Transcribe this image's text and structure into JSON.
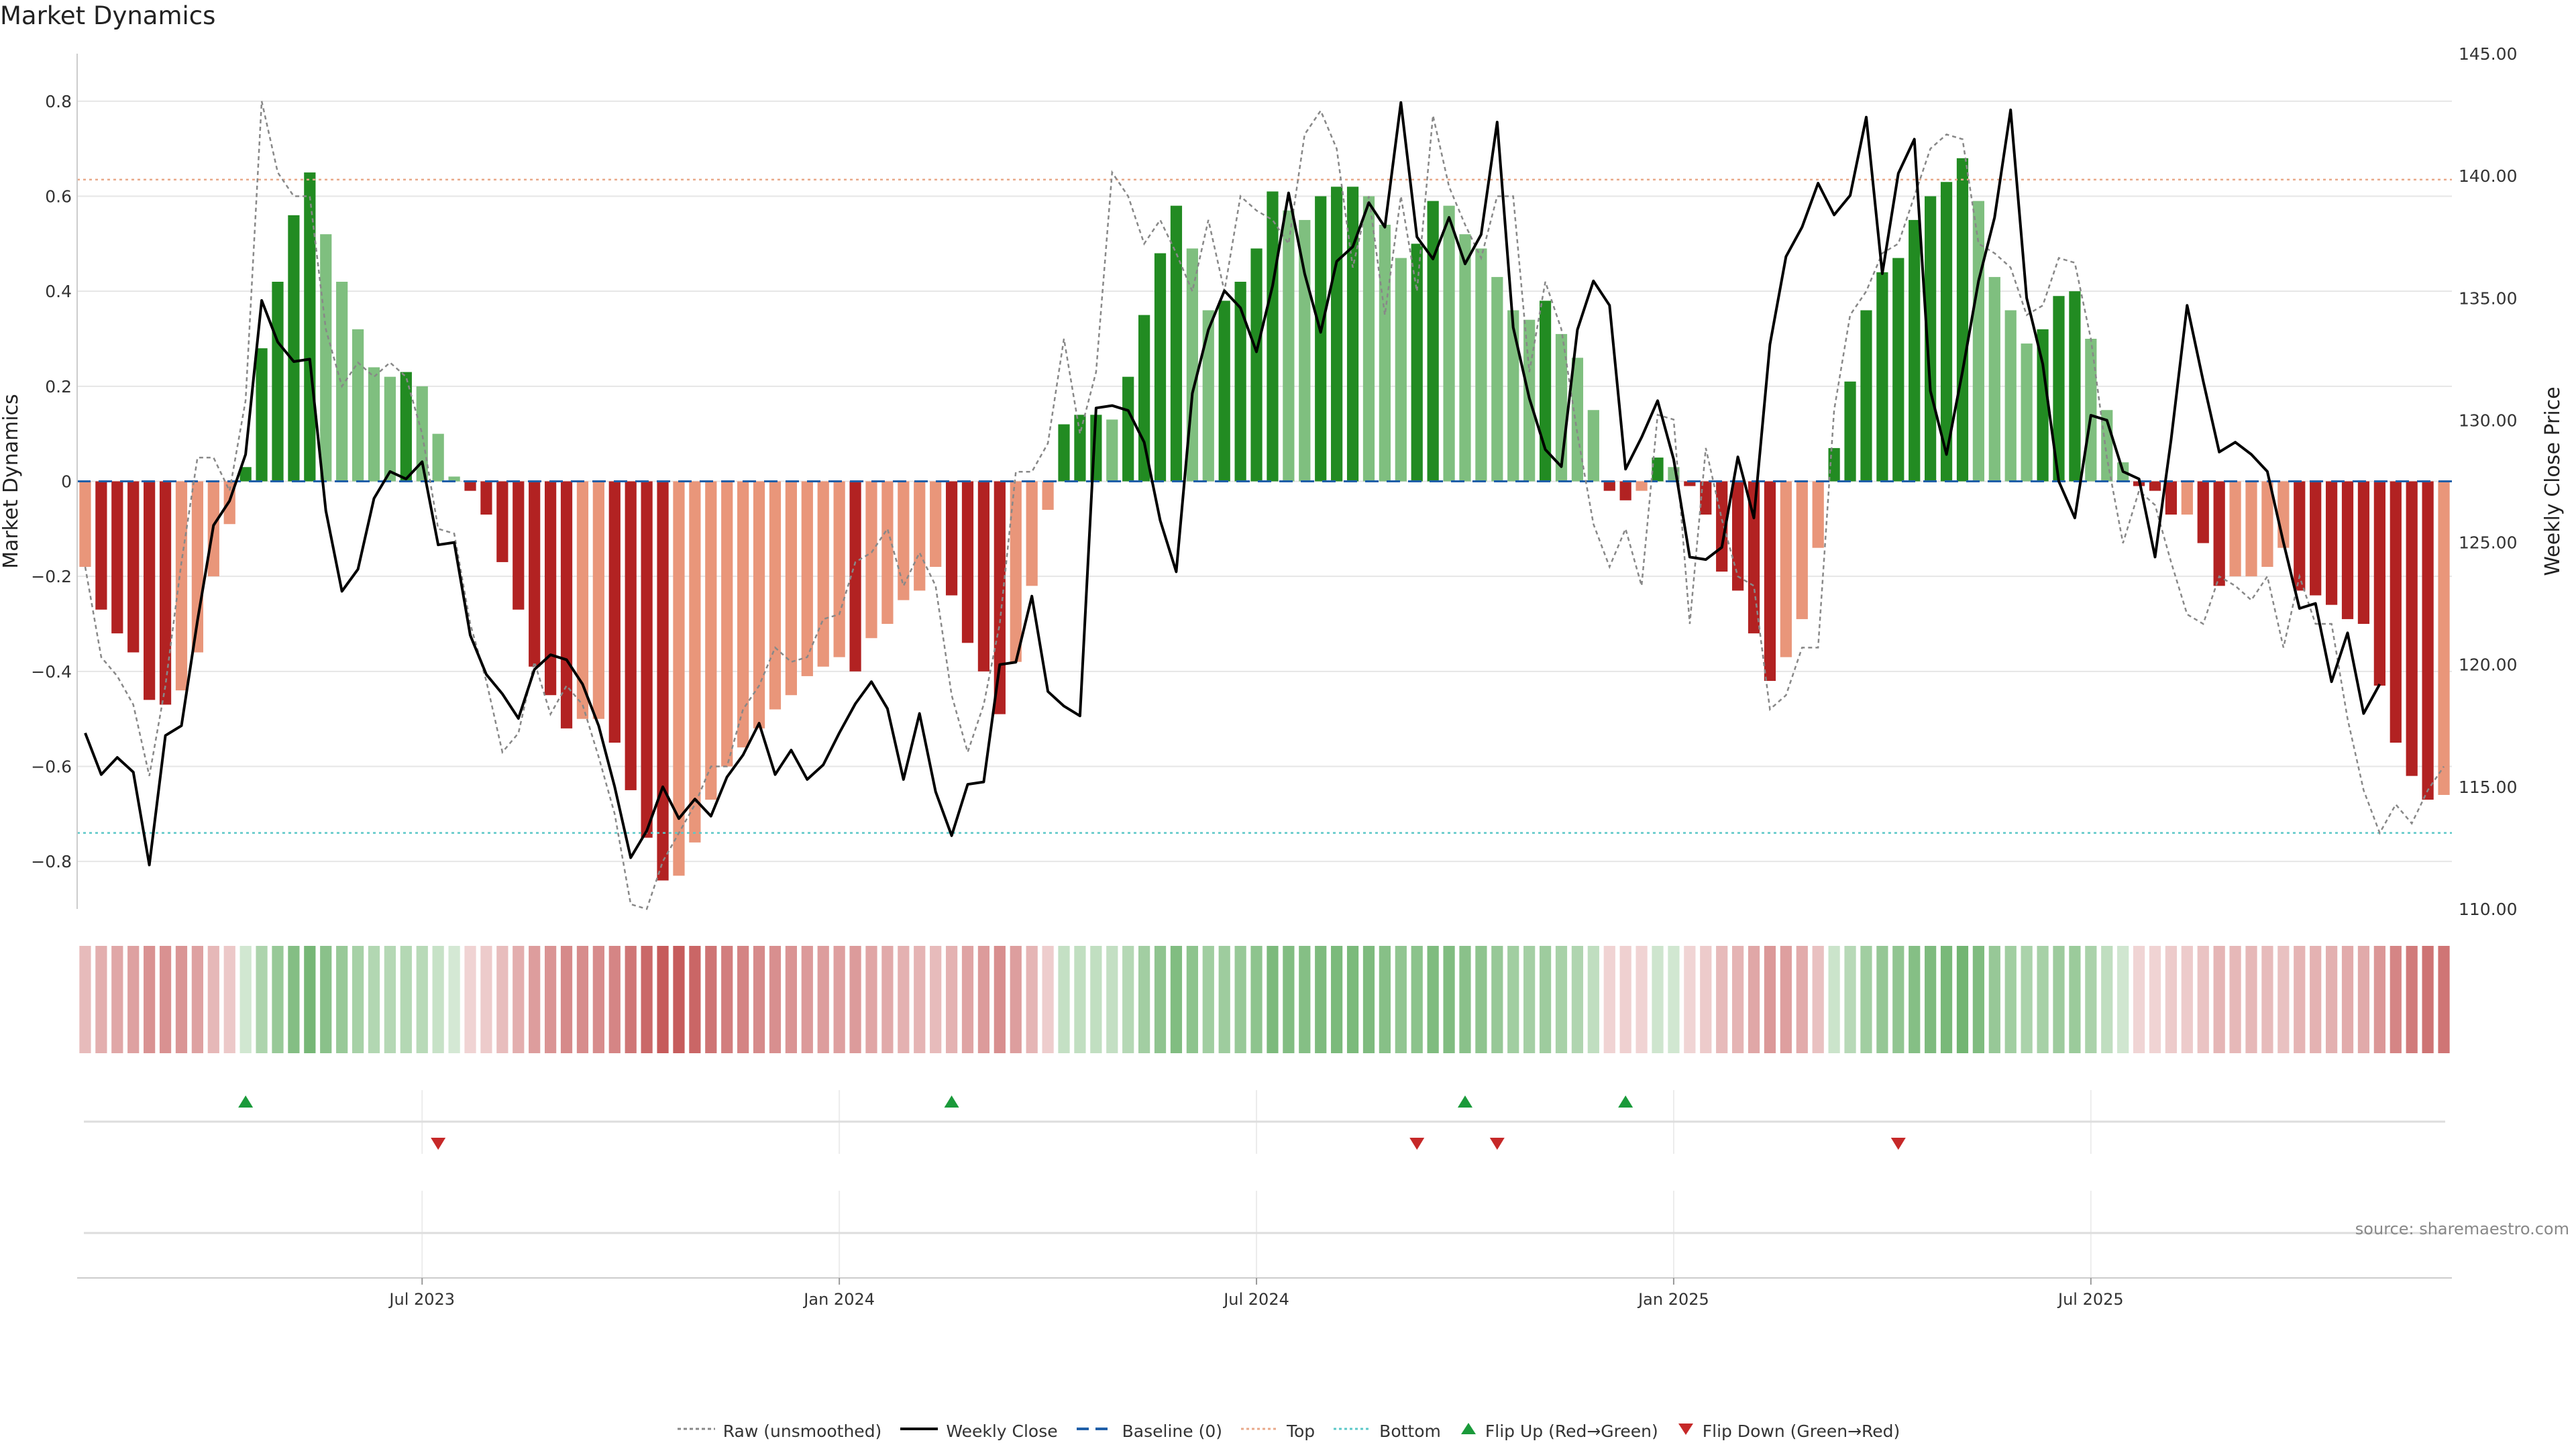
{
  "title": "Market Dynamics",
  "source": "source: sharemaestro.com",
  "colors": {
    "green_strong": "#228b22",
    "green_light": "#7fbf7f",
    "red_strong": "#b22222",
    "red_light": "#e9967a",
    "price_line": "#000000",
    "raw_line": "#888888",
    "baseline": "#1f5fa8",
    "top_line": "#e9a98a",
    "bottom_line": "#5bc8c8",
    "flip_up": "#1a9a3a",
    "flip_down": "#c62828"
  },
  "legend": [
    {
      "id": "raw",
      "label": "Raw (unsmoothed)"
    },
    {
      "id": "close",
      "label": "Weekly Close"
    },
    {
      "id": "baseline",
      "label": "Baseline (0)"
    },
    {
      "id": "top",
      "label": "Top"
    },
    {
      "id": "bottom",
      "label": "Bottom"
    },
    {
      "id": "flip-up",
      "label": "Flip Up (Red→Green)"
    },
    {
      "id": "flip-down",
      "label": "Flip Down (Green→Red)"
    }
  ],
  "chart_data": {
    "type": "bar",
    "title": "Market Dynamics",
    "ylabel": "Market Dynamics",
    "ylabel_right": "Weekly Close Price",
    "ylim": [
      -0.9,
      0.9
    ],
    "ylim_right": [
      110,
      145
    ],
    "y_ticks": [
      "0.8",
      "0.6",
      "0.4",
      "0.2",
      "0",
      "−0.2",
      "−0.4",
      "−0.6",
      "−0.8"
    ],
    "y_ticks_right": [
      "145.00",
      "140.00",
      "135.00",
      "130.00",
      "125.00",
      "120.00",
      "115.00",
      "110.00"
    ],
    "x_ticks": [
      {
        "label": "Jul 2023",
        "week": 21
      },
      {
        "label": "Jan 2024",
        "week": 47
      },
      {
        "label": "Jul 2024",
        "week": 73
      },
      {
        "label": "Jan 2025",
        "week": 99
      },
      {
        "label": "Jul 2025",
        "week": 125
      }
    ],
    "top": 0.635,
    "bottom": -0.74,
    "baseline": 0,
    "grid": true,
    "legend_position": "bottom-center",
    "series": [
      {
        "name": "Market Dynamics",
        "values": [
          -0.18,
          -0.27,
          -0.32,
          -0.36,
          -0.46,
          -0.47,
          -0.44,
          -0.36,
          -0.2,
          -0.09,
          0.03,
          0.28,
          0.42,
          0.56,
          0.65,
          0.52,
          0.42,
          0.32,
          0.24,
          0.22,
          0.23,
          0.2,
          0.1,
          0.01,
          -0.02,
          -0.07,
          -0.17,
          -0.27,
          -0.39,
          -0.45,
          -0.52,
          -0.5,
          -0.5,
          -0.55,
          -0.65,
          -0.75,
          -0.84,
          -0.83,
          -0.76,
          -0.67,
          -0.6,
          -0.56,
          -0.52,
          -0.48,
          -0.45,
          -0.41,
          -0.39,
          -0.37,
          -0.4,
          -0.33,
          -0.3,
          -0.25,
          -0.23,
          -0.18,
          -0.24,
          -0.34,
          -0.4,
          -0.49,
          -0.38,
          -0.22,
          -0.06,
          0.12,
          0.14,
          0.14,
          0.13,
          0.22,
          0.35,
          0.48,
          0.58,
          0.49,
          0.36,
          0.38,
          0.42,
          0.49,
          0.61,
          0.57,
          0.55,
          0.6,
          0.62,
          0.62,
          0.6,
          0.54,
          0.47,
          0.5,
          0.59,
          0.58,
          0.52,
          0.49,
          0.43,
          0.36,
          0.34,
          0.38,
          0.31,
          0.26,
          0.15,
          -0.02,
          -0.04,
          -0.02,
          0.05,
          0.03,
          -0.01,
          -0.07,
          -0.19,
          -0.23,
          -0.32,
          -0.42,
          -0.37,
          -0.29,
          -0.14,
          0.07,
          0.21,
          0.36,
          0.44,
          0.47,
          0.55,
          0.6,
          0.63,
          0.68,
          0.59,
          0.43,
          0.36,
          0.29,
          0.32,
          0.39,
          0.4,
          0.3,
          0.15,
          0.04,
          -0.01,
          -0.02,
          -0.07,
          -0.07,
          -0.13,
          -0.22,
          -0.2,
          -0.2,
          -0.18,
          -0.14,
          -0.23,
          -0.24,
          -0.26,
          -0.29,
          -0.3,
          -0.43,
          -0.55,
          -0.62,
          -0.67,
          -0.66
        ]
      },
      {
        "name": "Raw (unsmoothed)",
        "values": [
          -0.18,
          -0.37,
          -0.41,
          -0.47,
          -0.62,
          -0.43,
          -0.17,
          0.05,
          0.05,
          -0.02,
          0.17,
          0.8,
          0.65,
          0.6,
          0.6,
          0.32,
          0.2,
          0.25,
          0.22,
          0.25,
          0.22,
          0.1,
          -0.1,
          -0.11,
          -0.3,
          -0.42,
          -0.57,
          -0.53,
          -0.38,
          -0.49,
          -0.43,
          -0.47,
          -0.58,
          -0.7,
          -0.89,
          -0.9,
          -0.8,
          -0.74,
          -0.68,
          -0.6,
          -0.6,
          -0.48,
          -0.43,
          -0.35,
          -0.38,
          -0.37,
          -0.29,
          -0.28,
          -0.17,
          -0.15,
          -0.1,
          -0.22,
          -0.15,
          -0.22,
          -0.45,
          -0.57,
          -0.47,
          -0.3,
          0.02,
          0.02,
          0.08,
          0.3,
          0.1,
          0.23,
          0.65,
          0.6,
          0.5,
          0.55,
          0.48,
          0.4,
          0.55,
          0.4,
          0.6,
          0.57,
          0.55,
          0.5,
          0.73,
          0.78,
          0.7,
          0.45,
          0.6,
          0.35,
          0.6,
          0.4,
          0.77,
          0.62,
          0.54,
          0.47,
          0.6,
          0.6,
          0.23,
          0.42,
          0.32,
          0.1,
          -0.09,
          -0.18,
          -0.1,
          -0.22,
          0.14,
          0.13,
          -0.3,
          0.07,
          -0.08,
          -0.2,
          -0.22,
          -0.48,
          -0.45,
          -0.35,
          -0.35,
          0.15,
          0.35,
          0.4,
          0.48,
          0.5,
          0.6,
          0.7,
          0.73,
          0.72,
          0.5,
          0.48,
          0.45,
          0.35,
          0.37,
          0.47,
          0.46,
          0.3,
          0.05,
          -0.13,
          -0.02,
          -0.05,
          -0.17,
          -0.28,
          -0.3,
          -0.2,
          -0.22,
          -0.25,
          -0.2,
          -0.35,
          -0.2,
          -0.3,
          -0.3,
          -0.5,
          -0.65,
          -0.74,
          -0.68,
          -0.72,
          -0.65,
          -0.6
        ]
      },
      {
        "name": "Weekly Close",
        "values": [
          117.2,
          115.5,
          116.2,
          115.6,
          111.8,
          117.1,
          117.5,
          121.8,
          125.7,
          126.7,
          128.6,
          134.9,
          133.2,
          132.4,
          132.5,
          126.3,
          123.0,
          123.9,
          126.8,
          127.9,
          127.6,
          128.3,
          124.9,
          125.0,
          121.2,
          119.6,
          118.8,
          117.8,
          119.8,
          120.4,
          120.2,
          119.2,
          117.5,
          115.0,
          112.1,
          113.2,
          115.0,
          113.7,
          114.5,
          113.8,
          115.4,
          116.3,
          117.6,
          115.5,
          116.5,
          115.3,
          115.9,
          117.2,
          118.4,
          119.3,
          118.2,
          115.3,
          118.0,
          114.8,
          113.0,
          115.1,
          115.2,
          120.0,
          120.1,
          122.8,
          118.9,
          118.3,
          117.9,
          130.5,
          130.6,
          130.4,
          129.1,
          125.9,
          123.8,
          131.1,
          133.7,
          135.3,
          134.6,
          132.8,
          135.5,
          139.3,
          136.0,
          133.6,
          136.5,
          137.1,
          138.9,
          137.9,
          143.0,
          137.5,
          136.6,
          138.3,
          136.4,
          137.6,
          142.2,
          133.8,
          130.9,
          128.8,
          128.1,
          133.7,
          135.7,
          134.7,
          128.0,
          129.3,
          130.8,
          128.4,
          124.4,
          124.3,
          124.8,
          128.5,
          126.0,
          133.1,
          136.7,
          137.9,
          139.7,
          138.4,
          139.2,
          142.4,
          136.0,
          140.1,
          141.5,
          131.2,
          128.6,
          132.0,
          135.7,
          138.3,
          142.7,
          135.0,
          132.3,
          127.5,
          126.0,
          130.2,
          130.0,
          127.9,
          127.6,
          124.4,
          129.2,
          134.7,
          131.6,
          128.7,
          129.1,
          128.6,
          127.9,
          125.0,
          122.3,
          122.5,
          119.3,
          121.3,
          118.0,
          119.2
        ]
      }
    ],
    "flips_up": [
      10,
      54,
      86,
      96
    ],
    "flips_down": [
      22,
      83,
      88,
      113
    ]
  }
}
